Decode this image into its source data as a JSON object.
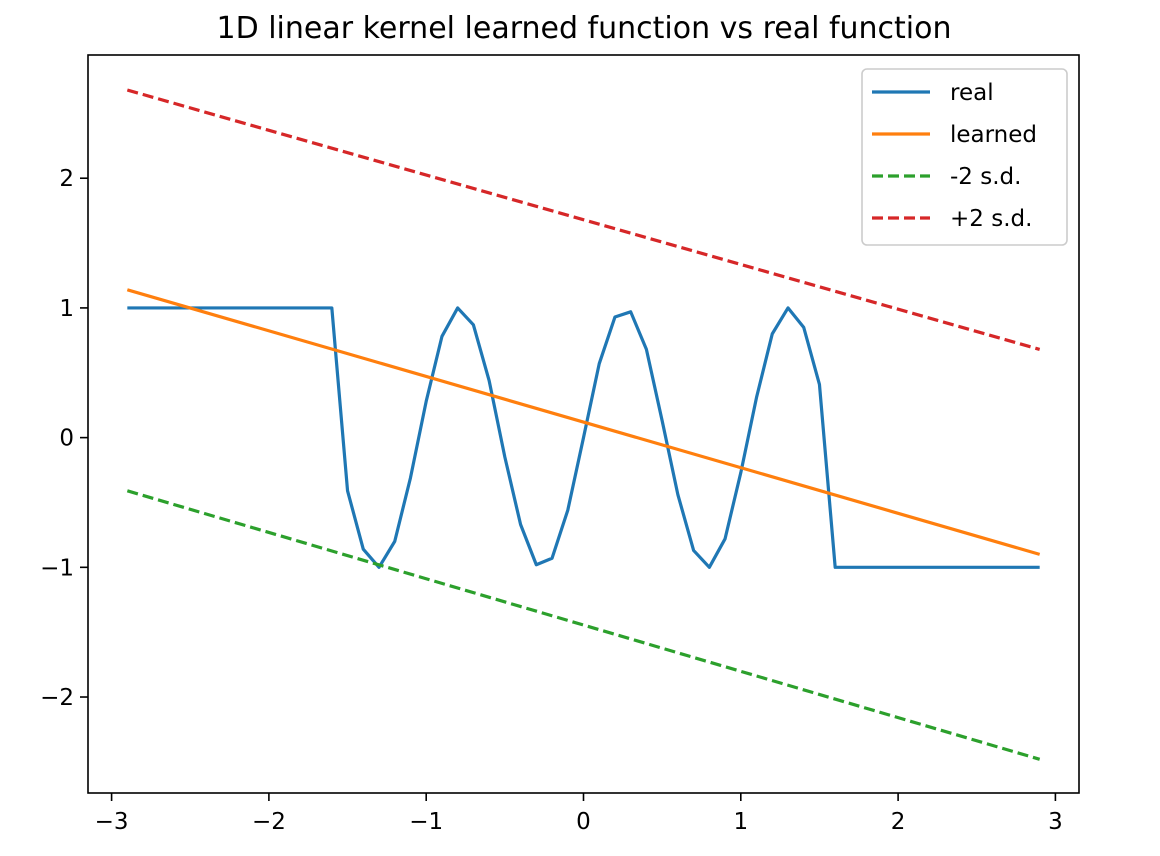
{
  "chart_data": {
    "type": "line",
    "title": "1D linear kernel learned function vs real function",
    "xlabel": "",
    "ylabel": "",
    "xlim": [
      -3.15,
      3.15
    ],
    "ylim": [
      -2.74,
      2.95
    ],
    "xticks": [
      -3,
      -2,
      -1,
      0,
      1,
      2,
      3
    ],
    "xtick_labels": [
      "−3",
      "−2",
      "−1",
      "0",
      "1",
      "2",
      "3"
    ],
    "yticks": [
      -2,
      -1,
      0,
      1,
      2
    ],
    "ytick_labels": [
      "−2",
      "−1",
      "0",
      "1",
      "2"
    ],
    "grid": false,
    "legend_position": "top-right",
    "series": [
      {
        "name": "real",
        "color": "#1f77b4",
        "dash": "solid",
        "x": [
          -2.9,
          -2.8,
          -2.7,
          -2.6,
          -2.5,
          -2.4,
          -2.3,
          -2.2,
          -2.1,
          -2.0,
          -1.9,
          -1.8,
          -1.7,
          -1.6,
          -1.5,
          -1.4,
          -1.3,
          -1.2,
          -1.1,
          -1.0,
          -0.9,
          -0.8,
          -0.7,
          -0.6,
          -0.5,
          -0.4,
          -0.3,
          -0.2,
          -0.1,
          0.0,
          0.1,
          0.2,
          0.3,
          0.4,
          0.5,
          0.6,
          0.7,
          0.8,
          0.9,
          1.0,
          1.1,
          1.2,
          1.3,
          1.4,
          1.5,
          1.6,
          1.7,
          1.8,
          1.9,
          2.0,
          2.1,
          2.2,
          2.3,
          2.4,
          2.5,
          2.6,
          2.7,
          2.8,
          2.9
        ],
        "y": [
          1,
          1,
          1,
          1,
          1,
          1,
          1,
          1,
          1,
          1,
          1,
          1,
          1,
          1,
          -0.41,
          -0.86,
          -1.0,
          -0.8,
          -0.31,
          0.28,
          0.78,
          1.0,
          0.87,
          0.44,
          -0.15,
          -0.67,
          -0.98,
          -0.93,
          -0.56,
          0.0,
          0.57,
          0.93,
          0.97,
          0.68,
          0.13,
          -0.44,
          -0.87,
          -1.0,
          -0.78,
          -0.27,
          0.31,
          0.8,
          1.0,
          0.85,
          0.41,
          -1,
          -1,
          -1,
          -1,
          -1,
          -1,
          -1,
          -1,
          -1,
          -1,
          -1,
          -1,
          -1,
          -1
        ]
      },
      {
        "name": "learned",
        "color": "#ff7f0e",
        "dash": "solid",
        "x": [
          -2.9,
          2.9
        ],
        "y": [
          1.14,
          -0.9
        ]
      },
      {
        "name": "-2 s.d.",
        "color": "#2ca02c",
        "dash": "dashed",
        "x": [
          -2.9,
          2.9
        ],
        "y": [
          -0.41,
          -2.48
        ]
      },
      {
        "name": "+2 s.d.",
        "color": "#d62728",
        "dash": "dashed",
        "x": [
          -2.9,
          2.9
        ],
        "y": [
          2.68,
          0.68
        ]
      }
    ]
  }
}
